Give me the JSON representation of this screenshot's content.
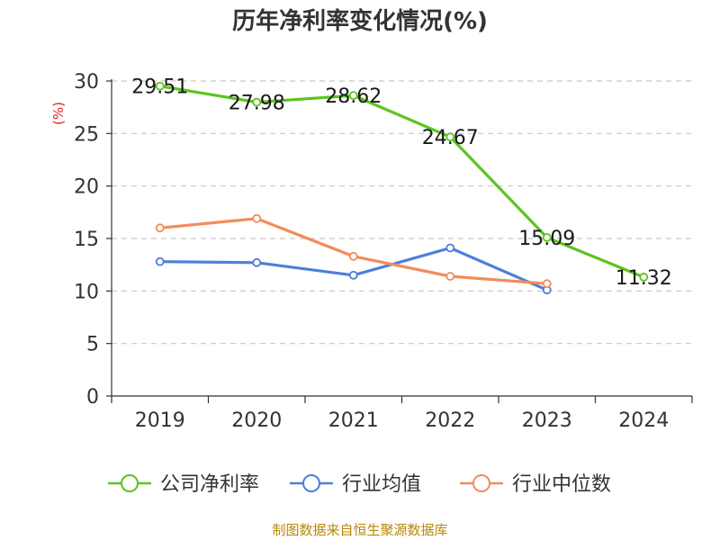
{
  "chart_data": {
    "type": "line",
    "title": "历年净利率变化情况(%)",
    "ylabel": "(%)",
    "xlabel": "",
    "categories": [
      "2019",
      "2020",
      "2021",
      "2022",
      "2023",
      "2024"
    ],
    "ylim": [
      0,
      30
    ],
    "yticks": [
      0,
      5,
      10,
      15,
      20,
      25,
      30
    ],
    "grid": "horizontal dashed",
    "legend_position": "bottom",
    "series": [
      {
        "name": "公司净利率",
        "color": "#5cc41c",
        "values": [
          29.51,
          27.98,
          28.62,
          24.67,
          15.09,
          11.32
        ],
        "labels": [
          "29.51",
          "27.98",
          "28.62",
          "24.67",
          "15.09",
          "11.32"
        ]
      },
      {
        "name": "行业均值",
        "color": "#4d7fdb",
        "values": [
          12.8,
          12.7,
          11.5,
          14.1,
          10.1,
          null
        ]
      },
      {
        "name": "行业中位数",
        "color": "#f28c5a",
        "values": [
          16.0,
          16.9,
          13.3,
          11.4,
          10.7,
          null
        ]
      }
    ],
    "source": "制图数据来自恒生聚源数据库"
  }
}
